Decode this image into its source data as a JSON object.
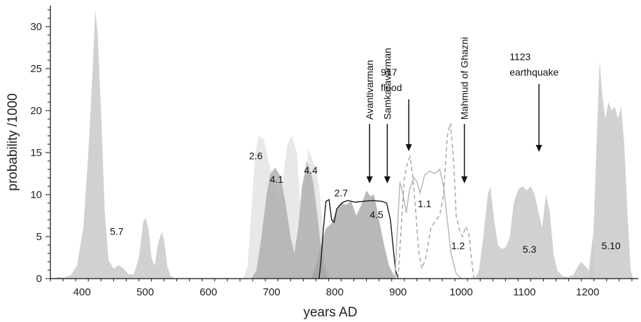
{
  "chart_data": {
    "type": "area",
    "title": "",
    "xlabel": "years AD",
    "ylabel": "probability /1000",
    "xlim": [
      350,
      1280
    ],
    "ylim": [
      0,
      32.5
    ],
    "x_ticks": [
      400,
      500,
      600,
      700,
      800,
      900,
      1000,
      1100,
      1200
    ],
    "y_ticks": [
      0,
      5,
      10,
      15,
      20,
      25,
      30
    ],
    "grid": false,
    "series": [
      {
        "name": "5.7",
        "style": "fill",
        "color": "#c4c4c4",
        "label_at": [
          455,
          5.2
        ],
        "points": [
          [
            355,
            0
          ],
          [
            362,
            0.2
          ],
          [
            372,
            0.1
          ],
          [
            382,
            0.4
          ],
          [
            392,
            1.5
          ],
          [
            402,
            6
          ],
          [
            410,
            15
          ],
          [
            417,
            25
          ],
          [
            421,
            32
          ],
          [
            425,
            29
          ],
          [
            430,
            20
          ],
          [
            436,
            8
          ],
          [
            442,
            2.2
          ],
          [
            450,
            1.2
          ],
          [
            458,
            1.6
          ],
          [
            466,
            1.2
          ],
          [
            474,
            0.5
          ],
          [
            482,
            0.5
          ],
          [
            490,
            2.5
          ],
          [
            497,
            6.8
          ],
          [
            501,
            7.2
          ],
          [
            505,
            6
          ],
          [
            510,
            2.5
          ],
          [
            515,
            1.5
          ],
          [
            520,
            4
          ],
          [
            526,
            5.6
          ],
          [
            530,
            4.5
          ],
          [
            535,
            1.5
          ],
          [
            540,
            0.3
          ],
          [
            548,
            0
          ]
        ]
      },
      {
        "name": "2.6",
        "style": "fill",
        "color": "#e2e2e2",
        "label_at": [
          675,
          14.2
        ],
        "points": [
          [
            655,
            0
          ],
          [
            662,
            1.5
          ],
          [
            668,
            8
          ],
          [
            674,
            15
          ],
          [
            680,
            17
          ],
          [
            688,
            16.5
          ],
          [
            695,
            14
          ],
          [
            702,
            12
          ],
          [
            710,
            9.5
          ],
          [
            718,
            12
          ],
          [
            725,
            16
          ],
          [
            732,
            17
          ],
          [
            740,
            15
          ],
          [
            746,
            8
          ],
          [
            752,
            10
          ],
          [
            758,
            15.5
          ],
          [
            765,
            14
          ],
          [
            770,
            13
          ],
          [
            775,
            11
          ],
          [
            780,
            7
          ],
          [
            785,
            2
          ],
          [
            792,
            0
          ]
        ]
      },
      {
        "name": "4.1",
        "style": "fill",
        "color": "#ababab",
        "label_at": [
          708,
          11.4
        ],
        "points": [
          [
            668,
            0
          ],
          [
            676,
            1
          ],
          [
            684,
            5
          ],
          [
            692,
            10
          ],
          [
            698,
            12.5
          ],
          [
            706,
            13.2
          ],
          [
            714,
            12.2
          ],
          [
            722,
            9
          ],
          [
            730,
            5
          ],
          [
            736,
            3
          ],
          [
            742,
            6
          ],
          [
            748,
            11
          ],
          [
            754,
            13
          ],
          [
            758,
            12.8
          ],
          [
            763,
            12.5
          ],
          [
            769,
            9
          ],
          [
            775,
            5
          ],
          [
            781,
            1.5
          ],
          [
            788,
            0
          ]
        ]
      },
      {
        "name": "4.4",
        "style": "fill",
        "color": "#b8b8b8",
        "label_at": [
          762,
          12.5
        ],
        "points": [
          [
            738,
            0
          ],
          [
            743,
            4
          ],
          [
            749,
            11
          ],
          [
            755,
            14
          ],
          [
            760,
            13.2
          ],
          [
            766,
            11.5
          ],
          [
            772,
            8
          ],
          [
            778,
            4
          ],
          [
            784,
            1
          ],
          [
            790,
            0
          ]
        ]
      },
      {
        "name": "2.7",
        "style": "fill",
        "color": "#a4a4a4",
        "label_at": [
          810,
          9.8
        ],
        "points": [
          [
            762,
            0
          ],
          [
            770,
            1.5
          ],
          [
            778,
            4
          ],
          [
            786,
            6
          ],
          [
            794,
            6.5
          ],
          [
            802,
            8
          ],
          [
            810,
            9
          ],
          [
            818,
            8.8
          ],
          [
            826,
            9.2
          ],
          [
            834,
            7.5
          ],
          [
            842,
            8.8
          ],
          [
            850,
            10.5
          ],
          [
            856,
            9.8
          ],
          [
            862,
            10
          ],
          [
            870,
            7
          ],
          [
            878,
            4
          ],
          [
            886,
            1.5
          ],
          [
            896,
            0
          ]
        ]
      },
      {
        "name": "4.5",
        "style": "line",
        "color": "#1a1a1a",
        "label_at": [
          866,
          7.2
        ],
        "points": [
          [
            775,
            0
          ],
          [
            778,
            2
          ],
          [
            782,
            6
          ],
          [
            786,
            9.2
          ],
          [
            791,
            9.4
          ],
          [
            795,
            7
          ],
          [
            799,
            6.7
          ],
          [
            803,
            8.3
          ],
          [
            811,
            9
          ],
          [
            820,
            9.3
          ],
          [
            832,
            9.1
          ],
          [
            845,
            9.2
          ],
          [
            860,
            9.3
          ],
          [
            874,
            9.2
          ],
          [
            882,
            9
          ],
          [
            888,
            7
          ],
          [
            892,
            4
          ],
          [
            896,
            1
          ],
          [
            900,
            0
          ]
        ]
      },
      {
        "name": "1.1",
        "style": "line",
        "color": "#b8b8b8",
        "label_at": [
          942,
          8.5
        ],
        "points": [
          [
            895,
            0
          ],
          [
            899,
            6
          ],
          [
            903,
            11.5
          ],
          [
            908,
            10
          ],
          [
            913,
            7.8
          ],
          [
            918,
            10.5
          ],
          [
            925,
            12
          ],
          [
            930,
            11.5
          ],
          [
            935,
            10.2
          ],
          [
            942,
            12.3
          ],
          [
            950,
            12.8
          ],
          [
            958,
            12.5
          ],
          [
            966,
            13
          ],
          [
            972,
            11
          ],
          [
            978,
            7
          ],
          [
            984,
            3
          ],
          [
            992,
            0.6
          ],
          [
            1000,
            0
          ]
        ]
      },
      {
        "name": "dashed",
        "style": "dashed",
        "color": "#a8a8a8",
        "label_at": null,
        "points": [
          [
            900,
            0
          ],
          [
            905,
            6
          ],
          [
            910,
            12
          ],
          [
            915,
            13.8
          ],
          [
            919,
            14.5
          ],
          [
            923,
            12.5
          ],
          [
            928,
            8
          ],
          [
            933,
            3
          ],
          [
            938,
            1.2
          ],
          [
            944,
            2.5
          ],
          [
            952,
            6
          ],
          [
            960,
            7
          ],
          [
            966,
            7.5
          ],
          [
            972,
            10
          ],
          [
            978,
            17
          ],
          [
            983,
            18.5
          ],
          [
            988,
            14
          ],
          [
            992,
            7.5
          ],
          [
            997,
            5.8
          ],
          [
            1002,
            5
          ],
          [
            1007,
            6.2
          ],
          [
            1012,
            5.5
          ],
          [
            1016,
            2.5
          ],
          [
            1020,
            0
          ]
        ]
      },
      {
        "name": "1.2",
        "style": "none",
        "color": "#a8a8a8",
        "label_at": [
          995,
          3.5
        ],
        "points": []
      },
      {
        "name": "5.3",
        "style": "fill",
        "color": "#c4c4c4",
        "label_at": [
          1108,
          3.1
        ],
        "points": [
          [
            1022,
            0
          ],
          [
            1028,
            1
          ],
          [
            1035,
            5
          ],
          [
            1042,
            10
          ],
          [
            1046,
            11
          ],
          [
            1052,
            7
          ],
          [
            1058,
            4
          ],
          [
            1065,
            3.5
          ],
          [
            1071,
            3.8
          ],
          [
            1077,
            5
          ],
          [
            1083,
            9
          ],
          [
            1090,
            10.6
          ],
          [
            1097,
            11
          ],
          [
            1104,
            10.5
          ],
          [
            1110,
            11
          ],
          [
            1116,
            10
          ],
          [
            1122,
            8
          ],
          [
            1128,
            6
          ],
          [
            1134,
            10
          ],
          [
            1140,
            8
          ],
          [
            1146,
            3
          ],
          [
            1152,
            1
          ],
          [
            1160,
            0.3
          ],
          [
            1170,
            0.2
          ],
          [
            1178,
            0.5
          ],
          [
            1185,
            1.5
          ],
          [
            1190,
            2
          ],
          [
            1196,
            1.5
          ],
          [
            1202,
            1
          ],
          [
            1208,
            5
          ]
        ]
      },
      {
        "name": "5.10",
        "style": "fill",
        "color": "#c4c4c4",
        "label_at": [
          1237,
          3.5
        ],
        "points": [
          [
            1205,
            0
          ],
          [
            1210,
            7
          ],
          [
            1215,
            18
          ],
          [
            1219,
            26
          ],
          [
            1223,
            22
          ],
          [
            1228,
            19
          ],
          [
            1233,
            21
          ],
          [
            1238,
            20
          ],
          [
            1243,
            20.5
          ],
          [
            1248,
            19
          ],
          [
            1253,
            20.5
          ],
          [
            1258,
            16
          ],
          [
            1263,
            8
          ],
          [
            1268,
            1
          ],
          [
            1272,
            0
          ]
        ]
      }
    ],
    "annotations": [
      {
        "lines": [
          "Avantivarman"
        ],
        "x": 855,
        "vertical": true
      },
      {
        "lines": [
          "Samkaravarman"
        ],
        "x": 883,
        "vertical": true
      },
      {
        "lines": [
          "917",
          "flood"
        ],
        "x": 917,
        "vertical": false
      },
      {
        "lines": [
          "Mahmud of Ghazni"
        ],
        "x": 1005,
        "vertical": true
      },
      {
        "lines": [
          "1123",
          "earthquake"
        ],
        "x": 1123,
        "vertical": false
      }
    ]
  }
}
